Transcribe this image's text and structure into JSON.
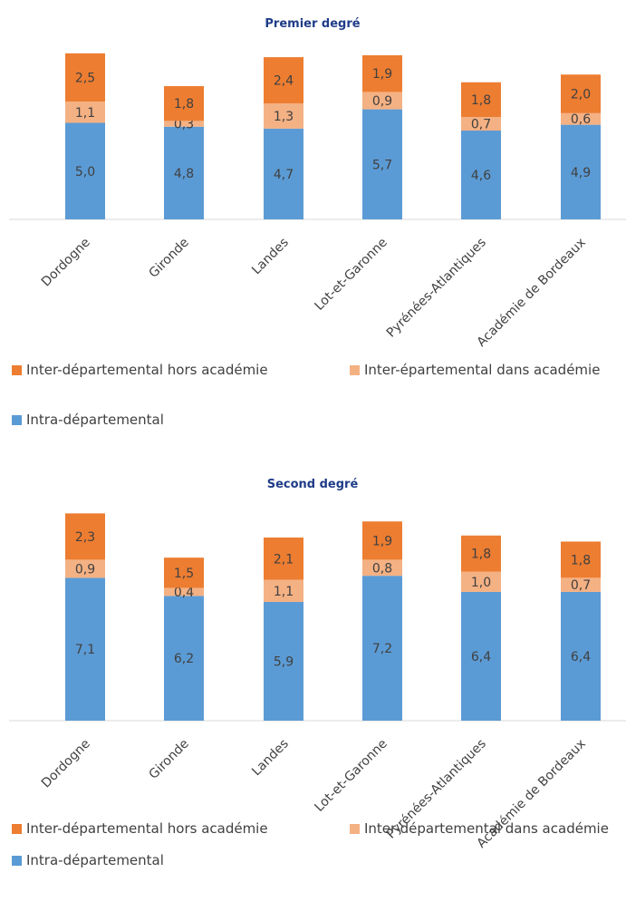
{
  "colors": {
    "intra": "#5b9bd5",
    "inter_dans": "#f4b183",
    "inter_hors": "#ed7d31",
    "axis": "#d9d9d9",
    "title": "#1f3c88",
    "label": "#404040"
  },
  "chart_data": [
    {
      "type": "bar",
      "stacked": true,
      "title": "Premier degré",
      "categories": [
        "Dordogne",
        "Gironde",
        "Landes",
        "Lot-et-Garonne",
        "Pyrénées-Atlantiques",
        "Académie de Bordeaux"
      ],
      "series": [
        {
          "name": "Intra-départemental",
          "color_key": "intra",
          "values": [
            5.0,
            4.8,
            4.7,
            5.7,
            4.6,
            4.9
          ],
          "labels": [
            "5,0",
            "4,8",
            "4,7",
            "5,7",
            "4,6",
            "4,9"
          ]
        },
        {
          "name": "Inter-épartemental dans académie",
          "color_key": "inter_dans",
          "values": [
            1.1,
            0.3,
            1.3,
            0.9,
            0.7,
            0.6
          ],
          "labels": [
            "1,1",
            "0,3",
            "1,3",
            "0,9",
            "0,7",
            "0,6"
          ]
        },
        {
          "name": "Inter-départemental hors académie",
          "color_key": "inter_hors",
          "values": [
            2.5,
            1.8,
            2.4,
            1.9,
            1.8,
            2.0
          ],
          "labels": [
            "2,5",
            "1,8",
            "2,4",
            "1,9",
            "1,8",
            "2,0"
          ]
        }
      ],
      "legend": [
        {
          "name": "Inter-départemental hors académie",
          "color_key": "inter_hors"
        },
        {
          "name": "Inter-épartemental dans académie",
          "color_key": "inter_dans"
        },
        {
          "name": "Intra-départemental",
          "color_key": "intra"
        }
      ],
      "legend_position": "bottom",
      "ylim": [
        0,
        10
      ],
      "grid": false
    },
    {
      "type": "bar",
      "stacked": true,
      "title": "Second degré",
      "categories": [
        "Dordogne",
        "Gironde",
        "Landes",
        "Lot-et-Garonne",
        "Pyrénées-Atlantiques",
        "Académie de Bordeaux"
      ],
      "series": [
        {
          "name": "Intra-départemental",
          "color_key": "intra",
          "values": [
            7.1,
            6.2,
            5.9,
            7.2,
            6.4,
            6.4
          ],
          "labels": [
            "7,1",
            "6,2",
            "5,9",
            "7,2",
            "6,4",
            "6,4"
          ]
        },
        {
          "name": "Inter-départemental dans académie",
          "color_key": "inter_dans",
          "values": [
            0.9,
            0.4,
            1.1,
            0.8,
            1.0,
            0.7
          ],
          "labels": [
            "0,9",
            "0,4",
            "1,1",
            "0,8",
            "1,0",
            "0,7"
          ]
        },
        {
          "name": "Inter-départemental hors académie",
          "color_key": "inter_hors",
          "values": [
            2.3,
            1.5,
            2.1,
            1.9,
            1.8,
            1.8
          ],
          "labels": [
            "2,3",
            "1,5",
            "2,1",
            "1,9",
            "1,8",
            "1,8"
          ]
        }
      ],
      "legend": [
        {
          "name": "Inter-départemental hors académie",
          "color_key": "inter_hors"
        },
        {
          "name": "Inter-départemental dans académie",
          "color_key": "inter_dans"
        },
        {
          "name": "Intra-départemental",
          "color_key": "intra"
        }
      ],
      "legend_position": "bottom",
      "ylim": [
        0,
        10.4
      ],
      "grid": false
    }
  ]
}
